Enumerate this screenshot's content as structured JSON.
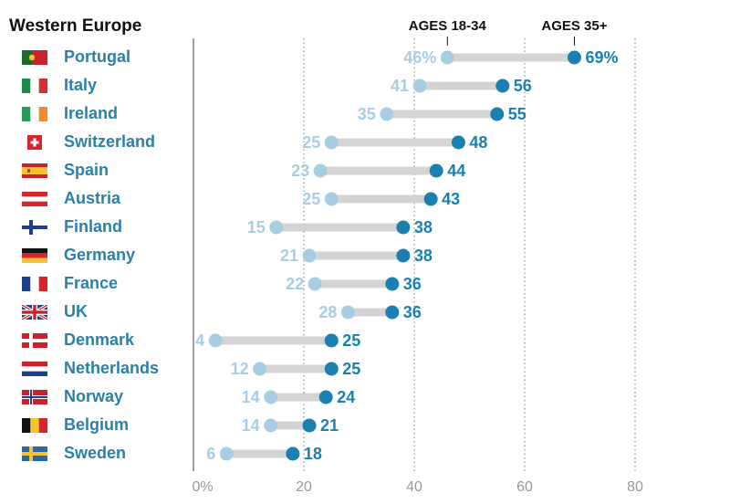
{
  "chart_data": {
    "type": "dot-range",
    "region": "Western Europe",
    "series_labels": {
      "young": "AGES 18-34",
      "old": "AGES 35+"
    },
    "colors": {
      "young": "#a8cde3",
      "old": "#1b7fb0",
      "connector": "#d4d4d4",
      "country_text": "#2c7fa8",
      "axis": "#999999"
    },
    "x_ticks": [
      "0%",
      "20",
      "40",
      "60",
      "80"
    ],
    "x_tick_values": [
      0,
      20,
      40,
      60,
      80
    ],
    "xlim": [
      0,
      80
    ],
    "rows": [
      {
        "country": "Portugal",
        "flag": "portugal-flag-icon",
        "young": 46,
        "old": 69,
        "young_label": "46%",
        "old_label": "69%"
      },
      {
        "country": "Italy",
        "flag": "italy-flag-icon",
        "young": 41,
        "old": 56,
        "young_label": "41",
        "old_label": "56"
      },
      {
        "country": "Ireland",
        "flag": "ireland-flag-icon",
        "young": 35,
        "old": 55,
        "young_label": "35",
        "old_label": "55"
      },
      {
        "country": "Switzerland",
        "flag": "switzerland-flag-icon",
        "young": 25,
        "old": 48,
        "young_label": "25",
        "old_label": "48"
      },
      {
        "country": "Spain",
        "flag": "spain-flag-icon",
        "young": 23,
        "old": 44,
        "young_label": "23",
        "old_label": "44"
      },
      {
        "country": "Austria",
        "flag": "austria-flag-icon",
        "young": 25,
        "old": 43,
        "young_label": "25",
        "old_label": "43"
      },
      {
        "country": "Finland",
        "flag": "finland-flag-icon",
        "young": 15,
        "old": 38,
        "young_label": "15",
        "old_label": "38"
      },
      {
        "country": "Germany",
        "flag": "germany-flag-icon",
        "young": 21,
        "old": 38,
        "young_label": "21",
        "old_label": "38"
      },
      {
        "country": "France",
        "flag": "france-flag-icon",
        "young": 22,
        "old": 36,
        "young_label": "22",
        "old_label": "36"
      },
      {
        "country": "UK",
        "flag": "uk-flag-icon",
        "young": 28,
        "old": 36,
        "young_label": "28",
        "old_label": "36"
      },
      {
        "country": "Denmark",
        "flag": "denmark-flag-icon",
        "young": 4,
        "old": 25,
        "young_label": "4",
        "old_label": "25"
      },
      {
        "country": "Netherlands",
        "flag": "netherlands-flag-icon",
        "young": 12,
        "old": 25,
        "young_label": "12",
        "old_label": "25"
      },
      {
        "country": "Norway",
        "flag": "norway-flag-icon",
        "young": 14,
        "old": 24,
        "young_label": "14",
        "old_label": "24"
      },
      {
        "country": "Belgium",
        "flag": "belgium-flag-icon",
        "young": 14,
        "old": 21,
        "young_label": "14",
        "old_label": "21"
      },
      {
        "country": "Sweden",
        "flag": "sweden-flag-icon",
        "young": 6,
        "old": 18,
        "young_label": "6",
        "old_label": "18"
      }
    ]
  }
}
